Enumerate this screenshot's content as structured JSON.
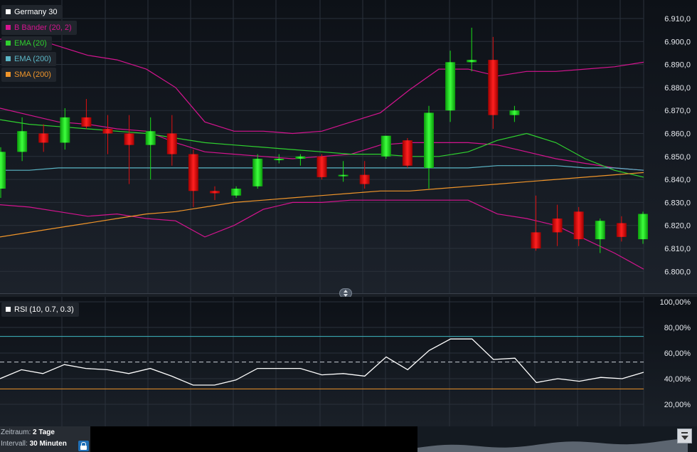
{
  "legend": {
    "main": [
      {
        "label": "Germany 30",
        "color": "#ffffff",
        "text_color": "#ffffff"
      },
      {
        "label": "B Bänder (20, 2)",
        "color": "#d4148f",
        "text_color": "#d4148f"
      },
      {
        "label": "EMA (20)",
        "color": "#2fd12f",
        "text_color": "#2fd12f"
      },
      {
        "label": "EMA (200)",
        "color": "#5bb6c6",
        "text_color": "#5bb6c6"
      },
      {
        "label": "SMA (200)",
        "color": "#f0952a",
        "text_color": "#f0952a"
      }
    ],
    "rsi": {
      "label": "RSI (10, 0.7, 0.3)",
      "color": "#ffffff"
    }
  },
  "info": {
    "period_label": "Zeitraum:",
    "period_value": "2 Tage",
    "interval_label": "Intervall:",
    "interval_value": "30 Minuten"
  },
  "colors": {
    "up": "#18e018",
    "down": "#e01010",
    "grid": "#2a313b",
    "rsi_line": "#ffffff",
    "rsi_upper": "#3fb8c4",
    "rsi_lower": "#f0952a"
  },
  "chart_data": [
    {
      "type": "candlestick",
      "title": "Germany 30",
      "ylim": [
        6795,
        6915
      ],
      "y_ticks": [
        "6.800,0",
        "6.810,0",
        "6.820,0",
        "6.830,0",
        "6.840,0",
        "6.850,0",
        "6.860,0",
        "6.870,0",
        "6.880,0",
        "6.890,0",
        "6.900,0",
        "6.910,0"
      ],
      "grid": true,
      "candles": [
        {
          "open": 6836,
          "high": 6854,
          "low": 6832,
          "close": 6852
        },
        {
          "open": 6852,
          "high": 6867,
          "low": 6848,
          "close": 6861
        },
        {
          "open": 6860,
          "high": 6864,
          "low": 6852,
          "close": 6856
        },
        {
          "open": 6856,
          "high": 6871,
          "low": 6853,
          "close": 6867
        },
        {
          "open": 6867,
          "high": 6875,
          "low": 6862,
          "close": 6863
        },
        {
          "open": 6862,
          "high": 6868,
          "low": 6851,
          "close": 6860
        },
        {
          "open": 6860,
          "high": 6868,
          "low": 6838,
          "close": 6855
        },
        {
          "open": 6855,
          "high": 6867,
          "low": 6840,
          "close": 6861
        },
        {
          "open": 6860,
          "high": 6868,
          "low": 6846,
          "close": 6851
        },
        {
          "open": 6851,
          "high": 6853,
          "low": 6828,
          "close": 6835
        },
        {
          "open": 6835,
          "high": 6837,
          "low": 6831,
          "close": 6834
        },
        {
          "open": 6833,
          "high": 6837,
          "low": 6832,
          "close": 6836
        },
        {
          "open": 6837,
          "high": 6851,
          "low": 6836,
          "close": 6849
        },
        {
          "open": 6849,
          "high": 6851,
          "low": 6847,
          "close": 6849
        },
        {
          "open": 6849,
          "high": 6851,
          "low": 6846,
          "close": 6850
        },
        {
          "open": 6850,
          "high": 6851,
          "low": 6840,
          "close": 6841
        },
        {
          "open": 6842,
          "high": 6848,
          "low": 6839,
          "close": 6842
        },
        {
          "open": 6842,
          "high": 6848,
          "low": 6836,
          "close": 6838
        },
        {
          "open": 6850,
          "high": 6858,
          "low": 6849,
          "close": 6859
        },
        {
          "open": 6857,
          "high": 6858,
          "low": 6845,
          "close": 6846
        },
        {
          "open": 6845,
          "high": 6872,
          "low": 6836,
          "close": 6869
        },
        {
          "open": 6870,
          "high": 6896,
          "low": 6865,
          "close": 6891
        },
        {
          "open": 6891,
          "high": 6906,
          "low": 6887,
          "close": 6892
        },
        {
          "open": 6892,
          "high": 6902,
          "low": 6862,
          "close": 6868
        },
        {
          "open": 6868,
          "high": 6872,
          "low": 6865,
          "close": 6870
        },
        {
          "open": 6817,
          "high": 6833,
          "low": 6809,
          "close": 6810
        },
        {
          "open": 6823,
          "high": 6829,
          "low": 6811,
          "close": 6817
        },
        {
          "open": 6826,
          "high": 6828,
          "low": 6811,
          "close": 6814
        },
        {
          "open": 6814,
          "high": 6823,
          "low": 6808,
          "close": 6822
        },
        {
          "open": 6821,
          "high": 6824,
          "low": 6813,
          "close": 6815
        },
        {
          "open": 6814,
          "high": 6826,
          "low": 6812,
          "close": 6825
        }
      ],
      "series": [
        {
          "name": "B Bänder (20, 2)",
          "values": [
            6901,
            6902,
            6898,
            6894,
            6892,
            6888,
            6880,
            6865,
            6861,
            6861,
            6860,
            6861,
            6865,
            6869,
            6879,
            6888,
            6888,
            6885,
            6887,
            6887,
            6888,
            6889,
            6891
          ]
        },
        {
          "name": "B Bänder (20, 2)",
          "values": [
            6871,
            6868,
            6865,
            6864,
            6862,
            6861,
            6856,
            6852,
            6851,
            6850,
            6849,
            6850,
            6851,
            6855,
            6856,
            6856,
            6856,
            6855,
            6852,
            6849,
            6847,
            6845,
            6844
          ]
        },
        {
          "name": "B Bänder (20, 2)",
          "values": [
            6829,
            6828,
            6826,
            6824,
            6825,
            6823,
            6822,
            6815,
            6820,
            6827,
            6830,
            6830,
            6831,
            6831,
            6831,
            6831,
            6831,
            6825,
            6823,
            6820,
            6814,
            6808,
            6801
          ]
        },
        {
          "name": "EMA (20)",
          "values": [
            6866,
            6864,
            6863,
            6862,
            6861,
            6860,
            6858,
            6856,
            6855,
            6854,
            6853,
            6852,
            6851,
            6851,
            6850,
            6850,
            6852,
            6857,
            6860,
            6856,
            6849,
            6844,
            6841
          ]
        },
        {
          "name": "EMA (200)",
          "values": [
            6844,
            6844,
            6845,
            6845,
            6845,
            6845,
            6845,
            6845,
            6845,
            6845,
            6845,
            6845,
            6845,
            6845,
            6845,
            6845,
            6845,
            6846,
            6846,
            6846,
            6845,
            6845,
            6844
          ]
        },
        {
          "name": "SMA (200)",
          "values": [
            6815,
            6817,
            6819,
            6821,
            6823,
            6825,
            6826,
            6828,
            6830,
            6831,
            6832,
            6833,
            6834,
            6835,
            6835,
            6836,
            6837,
            6838,
            6839,
            6840,
            6841,
            6842,
            6843
          ]
        }
      ]
    },
    {
      "type": "line",
      "title": "RSI (10, 0.7, 0.3)",
      "ylim": [
        10,
        100
      ],
      "y_ticks": [
        "20,00%",
        "40,00%",
        "60,00%",
        "80,00%",
        "100,00%"
      ],
      "upper_level": 73,
      "mid_level": 53,
      "lower_level": 32,
      "series": [
        {
          "name": "RSI (10, 0.7, 0.3)",
          "values": [
            40,
            47,
            44,
            51,
            48,
            47,
            44,
            48,
            42,
            35,
            35,
            39,
            48,
            48,
            48,
            43,
            44,
            42,
            57,
            47,
            62,
            71,
            71,
            55,
            56,
            37,
            40,
            38,
            41,
            40,
            45
          ]
        }
      ]
    }
  ]
}
